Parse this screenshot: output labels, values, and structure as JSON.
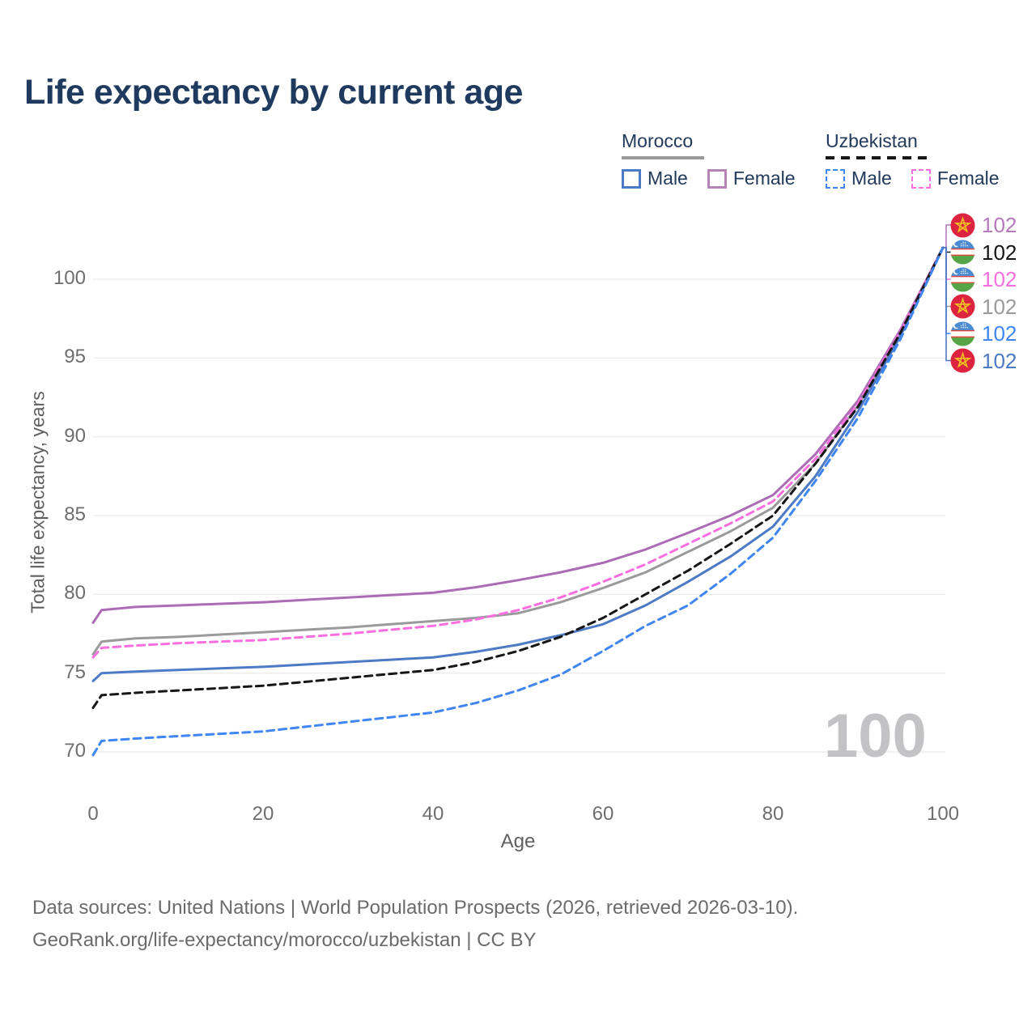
{
  "title": "Life expectancy by current age",
  "legend": {
    "position": "top-right",
    "groups": [
      {
        "name": "Morocco",
        "line_style": "solid",
        "underline_color": "#9a9a9a",
        "items": [
          {
            "label": "Male",
            "color": "#4d7ac4",
            "style": "solid"
          },
          {
            "label": "Female",
            "color": "#b583b5",
            "style": "solid"
          }
        ]
      },
      {
        "name": "Uzbekistan",
        "line_style": "dashed",
        "underline_color": "#161616",
        "items": [
          {
            "label": "Male",
            "color": "#3f86f2",
            "style": "dashed"
          },
          {
            "label": "Female",
            "color": "#fa6fe0",
            "style": "dashed"
          }
        ]
      }
    ]
  },
  "chart_data": {
    "type": "line",
    "title": "Life expectancy by current age",
    "xlabel": "Age",
    "ylabel": "Total life expectancy, years",
    "xlim": [
      0,
      100
    ],
    "ylim": [
      70,
      102
    ],
    "xticks": [
      0,
      20,
      40,
      60,
      80,
      100
    ],
    "yticks": [
      70,
      75,
      80,
      85,
      90,
      95,
      100
    ],
    "grid": "horizontal-only",
    "watermark": "100",
    "x": [
      0,
      1,
      5,
      10,
      15,
      20,
      25,
      30,
      35,
      40,
      45,
      50,
      55,
      60,
      65,
      70,
      75,
      80,
      85,
      90,
      95,
      100
    ],
    "series": [
      {
        "name": "Morocco All",
        "country": "Morocco",
        "sex": "All",
        "color": "#9a9a9a",
        "dash": "solid",
        "values": [
          76.2,
          77.0,
          77.2,
          77.3,
          77.45,
          77.6,
          77.75,
          77.9,
          78.1,
          78.3,
          78.5,
          78.8,
          79.5,
          80.4,
          81.4,
          82.7,
          84.0,
          85.5,
          88.3,
          92.0,
          96.6,
          102
        ]
      },
      {
        "name": "Morocco Male",
        "country": "Morocco",
        "sex": "Male",
        "color": "#4d7ac4",
        "dash": "solid",
        "values": [
          74.5,
          75.0,
          75.1,
          75.2,
          75.3,
          75.4,
          75.55,
          75.7,
          75.85,
          76.0,
          76.35,
          76.8,
          77.4,
          78.1,
          79.3,
          80.8,
          82.4,
          84.3,
          87.5,
          91.6,
          96.4,
          102
        ]
      },
      {
        "name": "Morocco Female",
        "country": "Morocco",
        "sex": "Female",
        "color": "#ab6cb5",
        "dash": "solid",
        "values": [
          78.2,
          79.0,
          79.2,
          79.3,
          79.4,
          79.5,
          79.65,
          79.8,
          79.95,
          80.1,
          80.45,
          80.9,
          81.4,
          82.0,
          82.85,
          83.9,
          85.0,
          86.3,
          88.9,
          92.3,
          96.8,
          102
        ]
      },
      {
        "name": "Uzbekistan Female",
        "country": "Uzbekistan",
        "sex": "Female",
        "color": "#fa6fe0",
        "dash": "dashed",
        "values": [
          76.0,
          76.6,
          76.75,
          76.9,
          77.0,
          77.1,
          77.3,
          77.5,
          77.75,
          78.0,
          78.4,
          79.0,
          79.8,
          80.8,
          81.9,
          83.2,
          84.5,
          85.9,
          88.6,
          92.1,
          96.7,
          102
        ]
      },
      {
        "name": "Uzbekistan All",
        "country": "Uzbekistan",
        "sex": "All",
        "color": "#161616",
        "dash": "dashed",
        "values": [
          72.8,
          73.6,
          73.75,
          73.9,
          74.05,
          74.2,
          74.45,
          74.7,
          74.95,
          75.2,
          75.7,
          76.4,
          77.3,
          78.5,
          80.0,
          81.5,
          83.2,
          85.0,
          88.3,
          91.9,
          96.6,
          102
        ]
      },
      {
        "name": "Uzbekistan Male",
        "country": "Uzbekistan",
        "sex": "Male",
        "color": "#3f86f2",
        "dash": "dashed",
        "values": [
          69.8,
          70.7,
          70.85,
          71.0,
          71.15,
          71.3,
          71.6,
          71.9,
          72.2,
          72.5,
          73.1,
          73.9,
          74.9,
          76.4,
          78.0,
          79.3,
          81.3,
          83.6,
          87.2,
          91.2,
          96.2,
          102
        ]
      }
    ],
    "end_labels": [
      {
        "value": "102",
        "flag": "morocco",
        "series": "Morocco Female",
        "color": "#b47abc"
      },
      {
        "value": "102",
        "flag": "uzbekistan",
        "series": "Uzbekistan All",
        "color": "#161616"
      },
      {
        "value": "102",
        "flag": "uzbekistan",
        "series": "Uzbekistan Female",
        "color": "#fa6fe0"
      },
      {
        "value": "102",
        "flag": "morocco",
        "series": "Morocco All",
        "color": "#9a9a9a"
      },
      {
        "value": "102",
        "flag": "uzbekistan",
        "series": "Uzbekistan Male",
        "color": "#3f86f2"
      },
      {
        "value": "102",
        "flag": "morocco",
        "series": "Morocco Male",
        "color": "#4d7ac4"
      }
    ]
  },
  "footer": {
    "line1": "Data sources: United Nations | World Population Prospects (2026, retrieved 2026-03-10).",
    "line2": "GeoRank.org/life-expectancy/morocco/uzbekistan | CC BY"
  }
}
